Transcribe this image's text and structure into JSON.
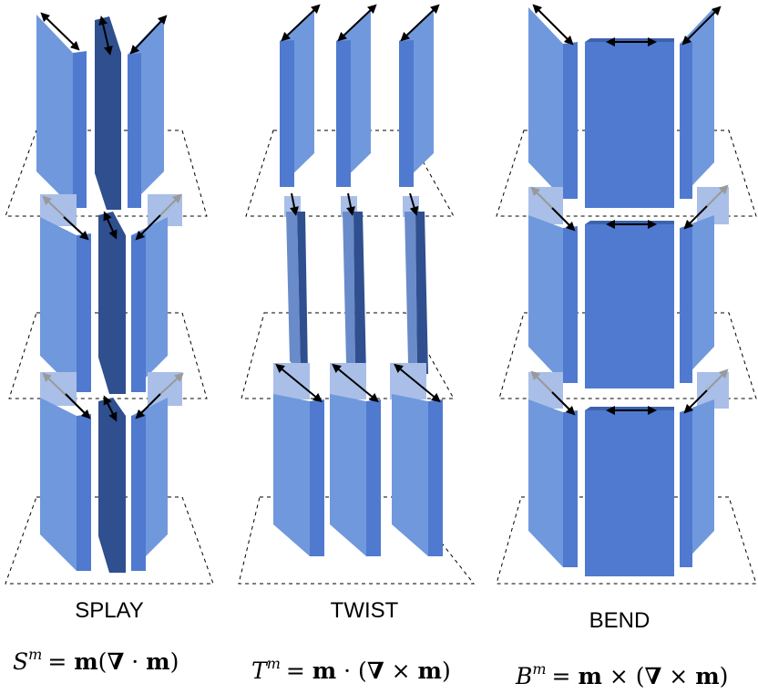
{
  "columns": [
    {
      "label": "SPLAY",
      "formula": {
        "symbol": "S",
        "sup": "m",
        "rhs_a": "= ",
        "m1": "m",
        "open": "(",
        "nabla": "∇",
        "op": " · ",
        "m2": "m",
        "close": ")"
      }
    },
    {
      "label": "TWIST",
      "formula": {
        "symbol": "T",
        "sup": "m",
        "rhs_a": "= ",
        "m1": "m",
        "mid": " · (",
        "nabla": "∇",
        "op": " × ",
        "m2": "m",
        "close": ")"
      }
    },
    {
      "label": "BEND",
      "formula": {
        "symbol": "B",
        "sup": "m",
        "rhs_a": "= ",
        "m1": "m",
        "mid": " × (",
        "nabla": "∇",
        "op": " × ",
        "m2": "m",
        "close": ")"
      }
    }
  ],
  "colors": {
    "light_face": "#7098DD",
    "mid_face": "#4F7ACF",
    "dark_face": "#2F4F8F",
    "faded_face": "#A9BFE8",
    "arrow": "#000000",
    "faded_arrow": "#999999"
  }
}
